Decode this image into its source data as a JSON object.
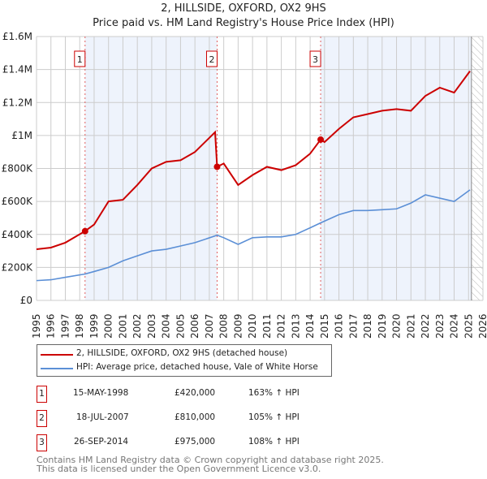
{
  "chart_data": {
    "type": "line",
    "title": "2, HILLSIDE, OXFORD, OX2 9HS",
    "subtitle": "Price paid vs. HM Land Registry's House Price Index (HPI)",
    "xlim": [
      1995,
      2026
    ],
    "ylim": [
      0,
      1600000
    ],
    "x_ticks": [
      "1995",
      "1996",
      "1997",
      "1998",
      "1999",
      "2000",
      "2001",
      "2002",
      "2003",
      "2004",
      "2005",
      "2006",
      "2007",
      "2008",
      "2009",
      "2010",
      "2011",
      "2012",
      "2013",
      "2014",
      "2015",
      "2016",
      "2017",
      "2018",
      "2019",
      "2020",
      "2021",
      "2022",
      "2023",
      "2024",
      "2025",
      "2026"
    ],
    "y_ticks": [
      {
        "v": 0,
        "l": "£0"
      },
      {
        "v": 200000,
        "l": "£200K"
      },
      {
        "v": 400000,
        "l": "£400K"
      },
      {
        "v": 600000,
        "l": "£600K"
      },
      {
        "v": 800000,
        "l": "£800K"
      },
      {
        "v": 1000000,
        "l": "£1M"
      },
      {
        "v": 1200000,
        "l": "£1.2M"
      },
      {
        "v": 1400000,
        "l": "£1.4M"
      },
      {
        "v": 1600000,
        "l": "£1.6M"
      }
    ],
    "series": [
      {
        "name": "2, HILLSIDE, OXFORD, OX2 9HS (detached house)",
        "color": "#cc0000",
        "x": [
          1995,
          1996,
          1997,
          1998.37,
          1999,
          2000,
          2001,
          2002,
          2003,
          2004,
          2005,
          2006,
          2007.4,
          2007.54,
          2008,
          2009,
          2010,
          2011,
          2012,
          2013,
          2014,
          2014.73,
          2015,
          2016,
          2017,
          2018,
          2019,
          2020,
          2021,
          2022,
          2023,
          2024,
          2025.1
        ],
        "y": [
          310000,
          320000,
          350000,
          420000,
          460000,
          600000,
          610000,
          700000,
          800000,
          840000,
          850000,
          900000,
          1020000,
          810000,
          830000,
          700000,
          760000,
          810000,
          790000,
          820000,
          890000,
          975000,
          960000,
          1040000,
          1110000,
          1130000,
          1150000,
          1160000,
          1150000,
          1240000,
          1290000,
          1260000,
          1390000
        ]
      },
      {
        "name": "HPI: Average price, detached house, Vale of White Horse",
        "color": "#5b8fd6",
        "x": [
          1995,
          1996,
          1997,
          1998.37,
          1999,
          2000,
          2001,
          2002,
          2003,
          2004,
          2005,
          2006,
          2007.54,
          2008,
          2009,
          2010,
          2011,
          2012,
          2013,
          2014,
          2014.73,
          2016,
          2017,
          2018,
          2019,
          2020,
          2021,
          2022,
          2023,
          2024,
          2025.1
        ],
        "y": [
          120000,
          125000,
          140000,
          160000,
          175000,
          200000,
          240000,
          270000,
          300000,
          310000,
          330000,
          350000,
          395000,
          380000,
          340000,
          380000,
          385000,
          385000,
          400000,
          440000,
          470000,
          520000,
          545000,
          545000,
          550000,
          555000,
          590000,
          640000,
          620000,
          600000,
          670000
        ]
      }
    ],
    "sales": [
      {
        "n": "1",
        "date": "15-MAY-1998",
        "x": 1998.37,
        "price": "£420,000",
        "value": 420000,
        "hpi": "163% ↑ HPI"
      },
      {
        "n": "2",
        "date": "18-JUL-2007",
        "x": 2007.54,
        "price": "£810,000",
        "value": 810000,
        "hpi": "105% ↑ HPI"
      },
      {
        "n": "3",
        "date": "26-SEP-2014",
        "x": 2014.73,
        "price": "£975,000",
        "value": 975000,
        "hpi": "108% ↑ HPI"
      }
    ],
    "forecast_start": 2025.2,
    "legend_position": "bottom"
  },
  "footer": [
    "Contains HM Land Registry data © Crown copyright and database right 2025.",
    "This data is licensed under the Open Government Licence v3.0."
  ]
}
